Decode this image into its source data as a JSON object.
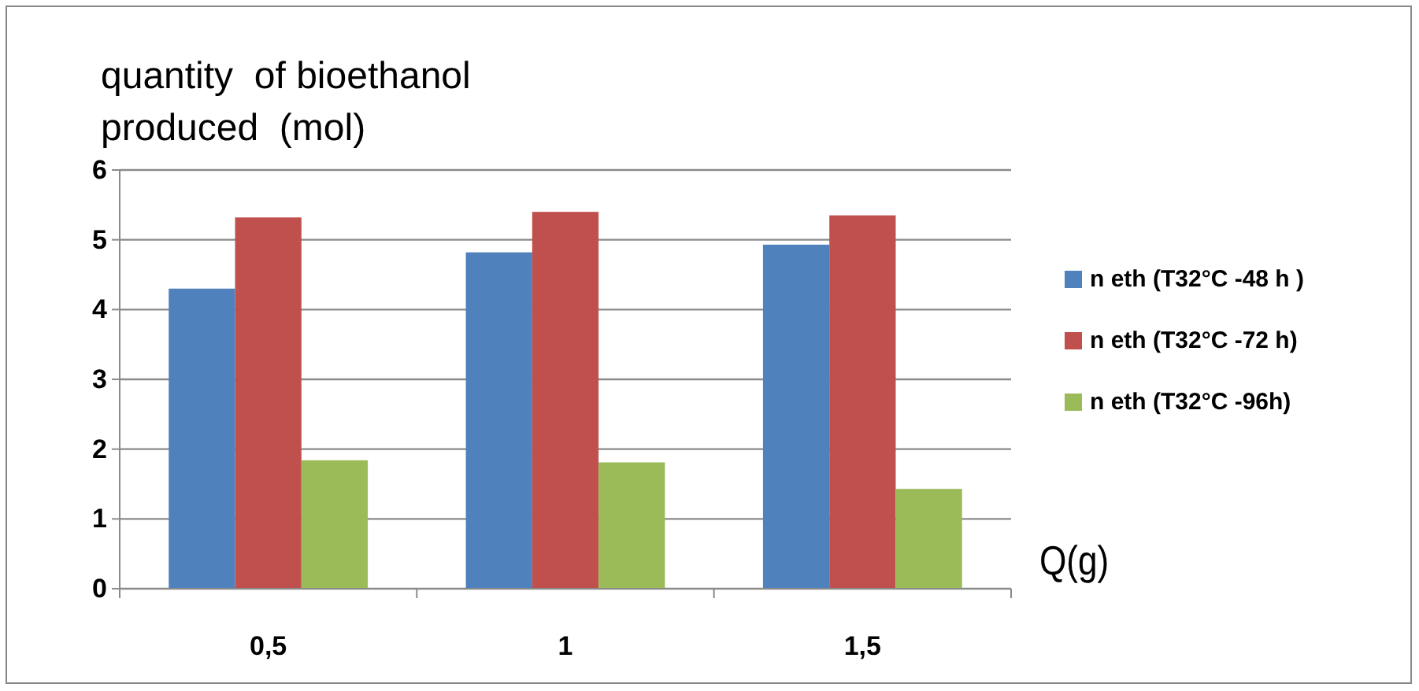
{
  "chart_data": {
    "type": "bar",
    "ylabel": "quantity  of bioethanol produced  (mol)",
    "xlabel": "Q(g)",
    "categories": [
      "0,5",
      "1",
      "1,5"
    ],
    "series": [
      {
        "name": "n eth (T32°C -48 h )",
        "color": "#4f81bd",
        "values": [
          4.3,
          4.82,
          4.93
        ]
      },
      {
        "name": "n eth (T32°C -72 h)",
        "color": "#c0504d",
        "values": [
          5.32,
          5.4,
          5.35
        ]
      },
      {
        "name": "n eth (T32°C -96h)",
        "color": "#9bbb59",
        "values": [
          1.84,
          1.81,
          1.43
        ]
      }
    ],
    "ylim": [
      0,
      6
    ],
    "yticks": [
      0,
      1,
      2,
      3,
      4,
      5,
      6
    ],
    "grid": "y",
    "legend": "right"
  }
}
